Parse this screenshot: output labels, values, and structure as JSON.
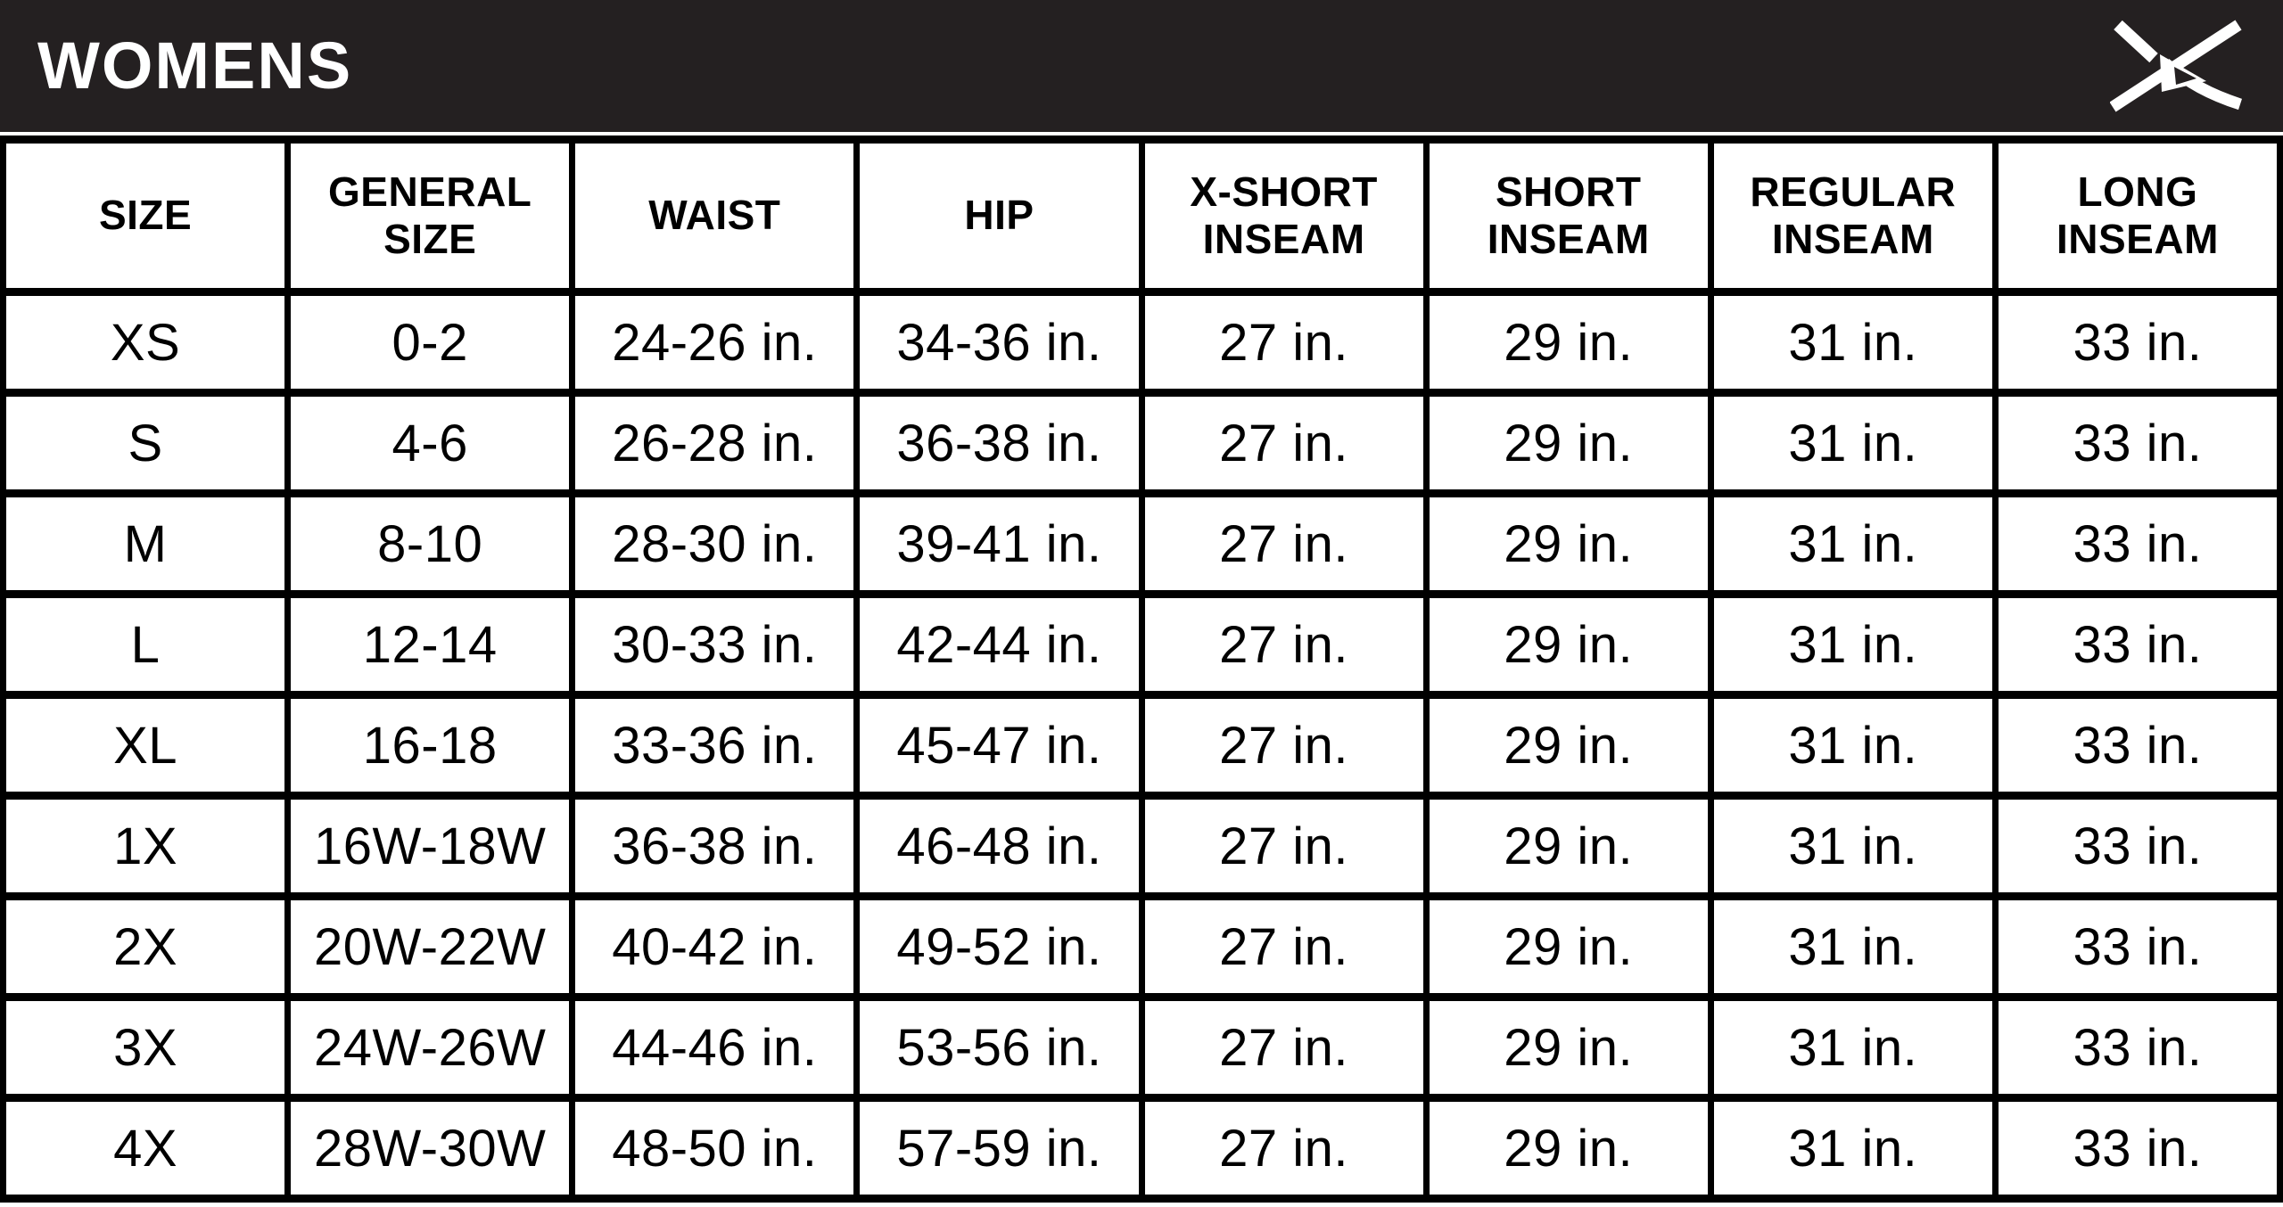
{
  "header": {
    "title": "WOMENS",
    "logo_icon": "arctix-brand-mark",
    "bar_color": "#242021",
    "title_color": "#ffffff"
  },
  "colors": {
    "background": "#ffffff",
    "table_border": "#000000",
    "cell_text": "#000000"
  },
  "chart_data": {
    "type": "table",
    "title": "WOMENS",
    "columns": [
      "SIZE",
      "GENERAL SIZE",
      "WAIST",
      "HIP",
      "X-SHORT INSEAM",
      "SHORT INSEAM",
      "REGULAR INSEAM",
      "LONG INSEAM"
    ],
    "columns_display": [
      "SIZE",
      "GENERAL\nSIZE",
      "WAIST",
      "HIP",
      "X-SHORT\nINSEAM",
      "SHORT\nINSEAM",
      "REGULAR\nINSEAM",
      "LONG\nINSEAM"
    ],
    "rows": [
      [
        "XS",
        "0-2",
        "24-26 in.",
        "34-36 in.",
        "27 in.",
        "29 in.",
        "31 in.",
        "33 in."
      ],
      [
        "S",
        "4-6",
        "26-28 in.",
        "36-38 in.",
        "27 in.",
        "29 in.",
        "31 in.",
        "33 in."
      ],
      [
        "M",
        "8-10",
        "28-30 in.",
        "39-41 in.",
        "27 in.",
        "29 in.",
        "31 in.",
        "33 in."
      ],
      [
        "L",
        "12-14",
        "30-33 in.",
        "42-44 in.",
        "27 in.",
        "29 in.",
        "31 in.",
        "33 in."
      ],
      [
        "XL",
        "16-18",
        "33-36 in.",
        "45-47 in.",
        "27 in.",
        "29 in.",
        "31 in.",
        "33 in."
      ],
      [
        "1X",
        "16W-18W",
        "36-38 in.",
        "46-48 in.",
        "27 in.",
        "29 in.",
        "31 in.",
        "33 in."
      ],
      [
        "2X",
        "20W-22W",
        "40-42 in.",
        "49-52 in.",
        "27 in.",
        "29 in.",
        "31 in.",
        "33 in."
      ],
      [
        "3X",
        "24W-26W",
        "44-46 in.",
        "53-56 in.",
        "27 in.",
        "29 in.",
        "31 in.",
        "33 in."
      ],
      [
        "4X",
        "28W-30W",
        "48-50 in.",
        "57-59 in.",
        "27 in.",
        "29 in.",
        "31 in.",
        "33 in."
      ]
    ],
    "layout": {
      "grid": "full black cell borders",
      "header_position": "top row, bold, two-line wrapped labels",
      "title_position": "black bar above table, logo at right"
    }
  }
}
